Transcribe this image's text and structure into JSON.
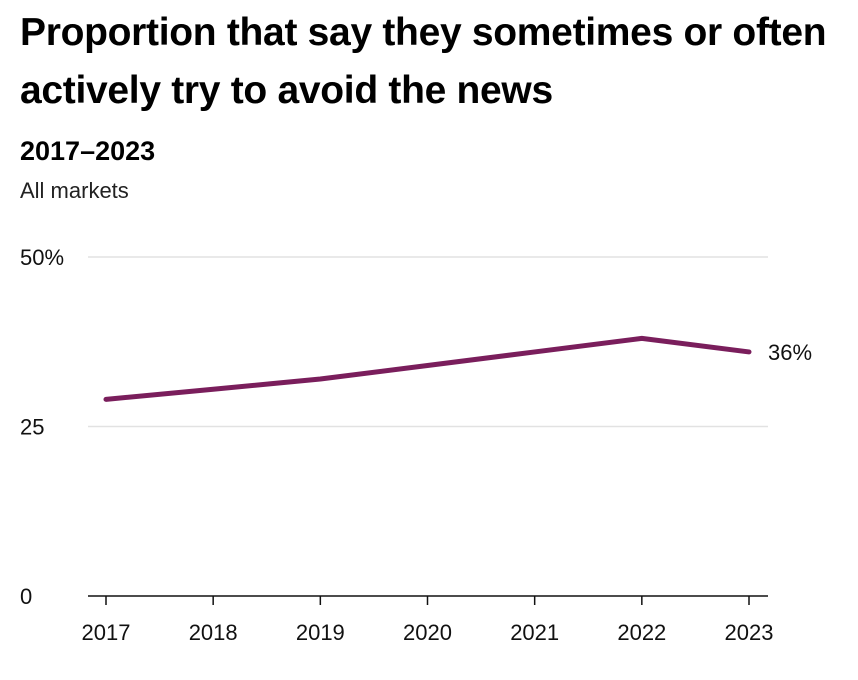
{
  "chart_data": {
    "type": "line",
    "title": "Proportion that say they sometimes or often actively try to avoid the news",
    "subtitle": "2017–2023",
    "note": "All markets",
    "x": [
      "2017",
      "2018",
      "2019",
      "2020",
      "2021",
      "2022",
      "2023"
    ],
    "series": [
      {
        "values": [
          29,
          30.5,
          32,
          34,
          36,
          38,
          36
        ],
        "color": "#7a1e5c"
      }
    ],
    "yticks": [
      {
        "value": 0,
        "label": "0"
      },
      {
        "value": 25,
        "label": "25"
      },
      {
        "value": 50,
        "label": "50%"
      }
    ],
    "ylim": [
      0,
      50
    ],
    "end_label": "36%",
    "grid": true,
    "legend": "none"
  }
}
